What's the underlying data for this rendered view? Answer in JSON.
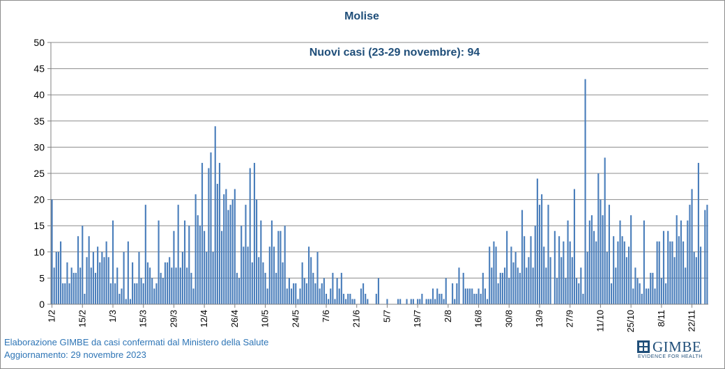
{
  "chart_data": {
    "type": "bar",
    "title": "Molise",
    "annotation": "Nuovi casi (23-29 novembre): 94",
    "ylim": [
      0,
      50
    ],
    "yticks": [
      0,
      5,
      10,
      15,
      20,
      25,
      30,
      35,
      40,
      45,
      50
    ],
    "grid": true,
    "bar_color": "#4a7ebb",
    "x_tick_labels": [
      "1/2",
      "15/2",
      "1/3",
      "15/3",
      "29/3",
      "12/4",
      "26/4",
      "10/5",
      "24/5",
      "7/6",
      "21/6",
      "5/7",
      "19/7",
      "2/8",
      "16/8",
      "30/8",
      "13/9",
      "27/9",
      "11/10",
      "25/10",
      "8/11",
      "22/11"
    ],
    "x_label_step": 14,
    "x_start": "2023-02-01",
    "values": [
      20,
      7,
      10,
      10,
      12,
      4,
      4,
      8,
      4,
      7,
      6,
      6,
      13,
      7,
      15,
      2,
      9,
      13,
      7,
      10,
      6,
      11,
      8,
      10,
      9,
      12,
      9,
      4,
      16,
      4,
      7,
      2,
      3,
      10,
      1,
      12,
      1,
      8,
      4,
      4,
      10,
      5,
      4,
      19,
      8,
      7,
      5,
      3,
      4,
      16,
      6,
      5,
      8,
      8,
      9,
      7,
      14,
      7,
      19,
      7,
      10,
      16,
      7,
      15,
      6,
      3,
      21,
      17,
      15,
      27,
      14,
      10,
      26,
      29,
      10,
      34,
      23,
      27,
      14,
      21,
      22,
      18,
      19,
      20,
      22,
      6,
      5,
      15,
      11,
      19,
      11,
      26,
      8,
      27,
      20,
      9,
      16,
      8,
      6,
      3,
      11,
      16,
      11,
      6,
      14,
      14,
      8,
      15,
      3,
      5,
      3,
      4,
      4,
      1,
      3,
      8,
      5,
      4,
      11,
      9,
      6,
      4,
      10,
      3,
      4,
      5,
      2,
      1,
      3,
      6,
      1,
      5,
      3,
      6,
      2,
      1,
      2,
      2,
      1,
      1,
      0,
      0,
      3,
      4,
      2,
      1,
      0,
      0,
      0,
      2,
      5,
      0,
      0,
      0,
      1,
      0,
      0,
      0,
      0,
      1,
      1,
      0,
      0,
      1,
      0,
      1,
      1,
      0,
      1,
      1,
      2,
      0,
      1,
      1,
      1,
      3,
      1,
      3,
      2,
      2,
      1,
      5,
      0,
      0,
      4,
      1,
      4,
      7,
      0,
      6,
      3,
      3,
      3,
      3,
      2,
      2,
      3,
      2,
      6,
      3,
      1,
      11,
      7,
      12,
      11,
      4,
      6,
      6,
      7,
      14,
      5,
      11,
      8,
      10,
      7,
      6,
      18,
      13,
      7,
      9,
      13,
      7,
      15,
      24,
      19,
      21,
      11,
      7,
      19,
      9,
      0,
      14,
      5,
      13,
      9,
      12,
      5,
      16,
      12,
      9,
      22,
      5,
      4,
      7,
      2,
      43,
      10,
      16,
      17,
      14,
      12,
      25,
      20,
      17,
      28,
      10,
      19,
      4,
      13,
      7,
      12,
      16,
      13,
      12,
      9,
      11,
      17,
      3,
      7,
      5,
      4,
      2,
      16,
      3,
      3,
      6,
      6,
      3,
      12,
      12,
      5,
      14,
      4,
      14,
      12,
      12,
      9,
      17,
      13,
      16,
      12,
      7,
      16,
      19,
      22,
      10,
      9,
      27,
      11,
      0,
      18,
      19
    ]
  },
  "footer": {
    "line1": "Elaborazione GIMBE da casi confermati dal Ministero della Salute",
    "line2": "Aggiornamento: 29 novembre 2023"
  },
  "logo": {
    "name": "GIMBE",
    "tagline": "EVIDENCE FOR HEALTH"
  }
}
